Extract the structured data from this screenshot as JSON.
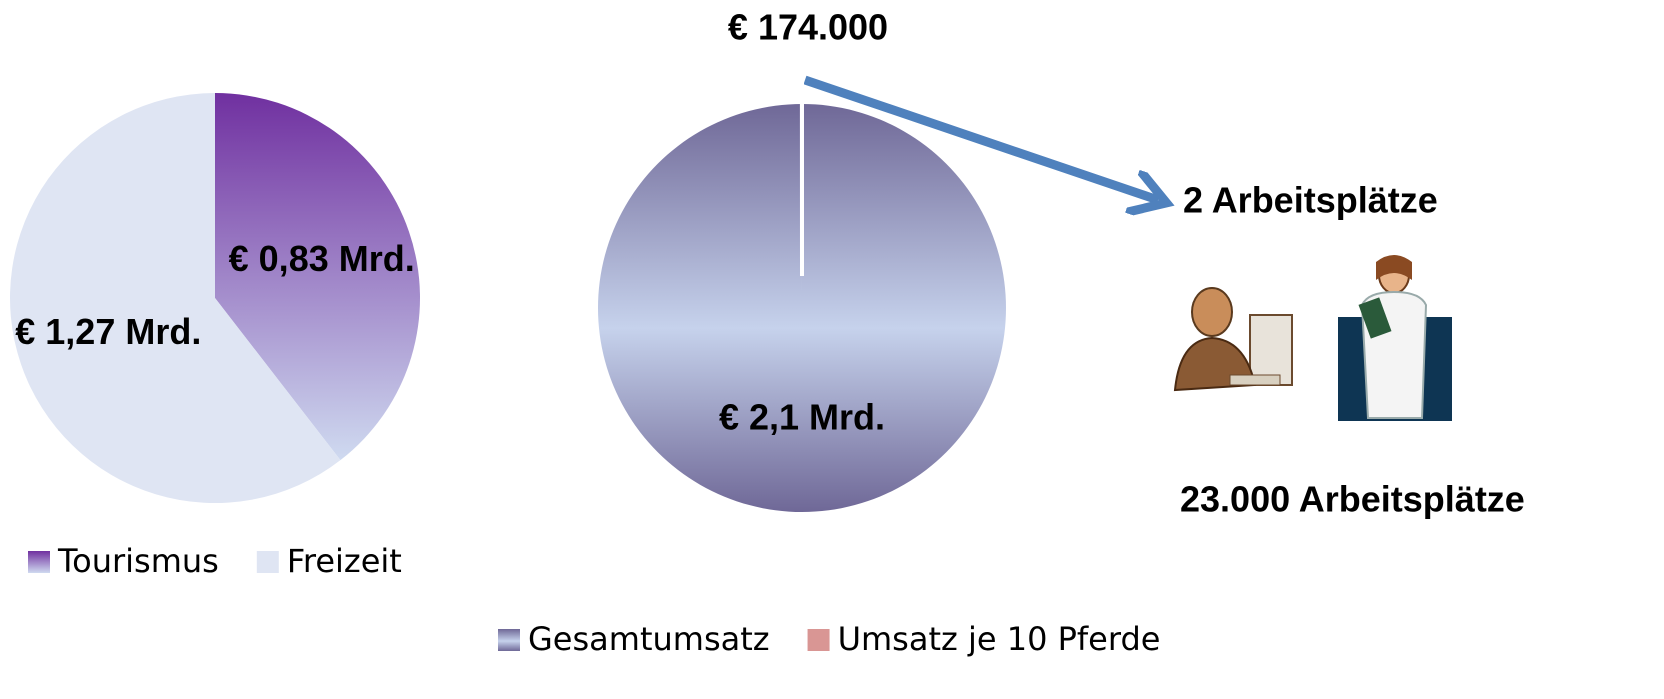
{
  "chart_data": [
    {
      "type": "pie",
      "categories": [
        "Tourismus",
        "Freizeit"
      ],
      "values": [
        0.83,
        1.27
      ],
      "value_labels": [
        "€ 0,83 Mrd.",
        "€ 1,27 Mrd."
      ],
      "colors": [
        "#7030a0",
        "#dfe5f3"
      ]
    },
    {
      "type": "pie",
      "categories": [
        "Gesamtumsatz",
        "Umsatz je 10 Pferde"
      ],
      "values": [
        2100000000,
        174000
      ],
      "value_labels": [
        "€ 2,1 Mrd.",
        "€ 174.000"
      ],
      "colors": [
        "#6f6897",
        "#d99694"
      ],
      "annotations": [
        "2 Arbeitsplätze",
        "23.000 Arbeitsplätze"
      ]
    }
  ]
}
